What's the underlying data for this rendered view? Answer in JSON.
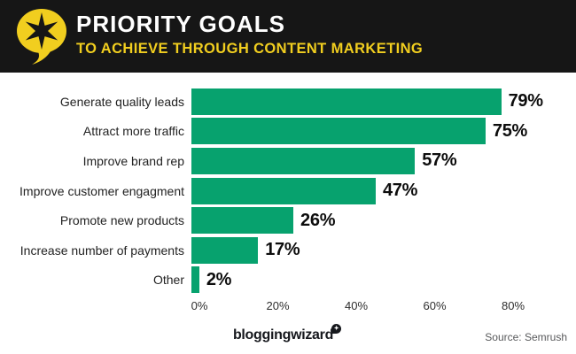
{
  "header": {
    "title": "PRIORITY GOALS",
    "subtitle": "TO ACHIEVE THROUGH CONTENT MARKETING",
    "icon": "speech-bubble-star-icon",
    "colors": {
      "background": "#161616",
      "title": "#FFFFFF",
      "accent_yellow": "#F1CE1F"
    }
  },
  "chart_data": {
    "type": "bar",
    "orientation": "horizontal",
    "title": "PRIORITY GOALS TO ACHIEVE THROUGH CONTENT MARKETING",
    "categories": [
      "Generate quality leads",
      "Attract more traffic",
      "Improve brand rep",
      "Improve customer engagment",
      "Promote new products",
      "Increase number of payments",
      "Other"
    ],
    "values": [
      79,
      75,
      57,
      47,
      26,
      17,
      2
    ],
    "value_labels": [
      "79%",
      "75%",
      "57%",
      "47%",
      "26%",
      "17%",
      "2%"
    ],
    "x_ticks": [
      "0%",
      "20%",
      "40%",
      "60%",
      "80%"
    ],
    "x_tick_values": [
      0,
      20,
      40,
      60,
      80
    ],
    "xlim": [
      0,
      90
    ],
    "bar_color": "#07A26E",
    "grid": false,
    "legend": false,
    "value_label_position": "end-of-bar"
  },
  "footer": {
    "logo_text": "bloggingwizard",
    "logo_badge_glyph": "✦",
    "source": "Source: Semrush"
  }
}
